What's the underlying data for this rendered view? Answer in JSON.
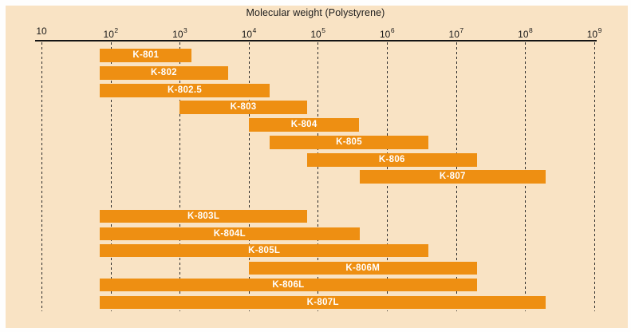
{
  "chart_data": {
    "type": "bar",
    "orientation": "horizontal",
    "title": "Molecular weight (Polystyrene)",
    "xlabel": "Molecular weight (Polystyrene)",
    "x_scale": "log10",
    "xlim": [
      10,
      1000000000
    ],
    "grid": "vertical-dashed",
    "legend": "none",
    "x_axis": {
      "base": "10",
      "tick_exponents": [
        1,
        2,
        3,
        4,
        5,
        6,
        7,
        8,
        9
      ],
      "tick_labels": [
        "10",
        "10^2",
        "10^3",
        "10^4",
        "10^5",
        "10^6",
        "10^7",
        "10^8",
        "10^9"
      ]
    },
    "series": [
      {
        "group": 1,
        "label": "K-801",
        "range": [
          70,
          1500
        ]
      },
      {
        "group": 1,
        "label": "K-802",
        "range": [
          70,
          5000
        ]
      },
      {
        "group": 1,
        "label": "K-802.5",
        "range": [
          70,
          20000
        ]
      },
      {
        "group": 1,
        "label": "K-803",
        "range": [
          1000,
          70000
        ]
      },
      {
        "group": 1,
        "label": "K-804",
        "range": [
          10000,
          400000
        ]
      },
      {
        "group": 1,
        "label": "K-805",
        "range": [
          20000,
          4000000
        ]
      },
      {
        "group": 1,
        "label": "K-806",
        "range": [
          70000,
          20000000
        ]
      },
      {
        "group": 1,
        "label": "K-807",
        "range": [
          400000,
          200000000
        ]
      },
      {
        "group": 2,
        "label": "K-803L",
        "range": [
          70,
          70000
        ]
      },
      {
        "group": 2,
        "label": "K-804L",
        "range": [
          70,
          400000
        ]
      },
      {
        "group": 2,
        "label": "K-805L",
        "range": [
          70,
          4000000
        ]
      },
      {
        "group": 2,
        "label": "K-806M",
        "range": [
          10000,
          20000000
        ]
      },
      {
        "group": 2,
        "label": "K-806L",
        "range": [
          70,
          20000000
        ]
      },
      {
        "group": 2,
        "label": "K-807L",
        "range": [
          70,
          200000000
        ]
      }
    ]
  },
  "colors": {
    "panel_background": "#f9e3c4",
    "bar": "#ee8f12",
    "bar_label": "#ffffff",
    "axis": "#141414",
    "gridline": "#2a2a2a",
    "page_background": "#fefefe"
  }
}
